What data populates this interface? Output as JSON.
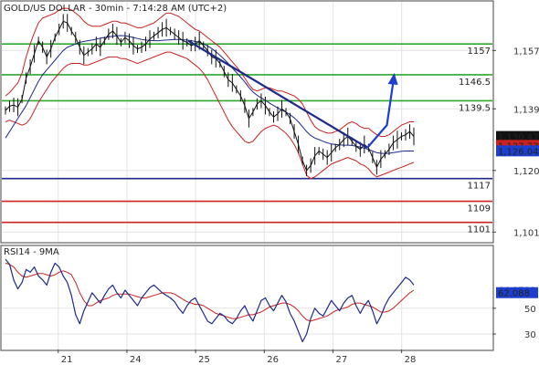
{
  "chart_data": [
    {
      "type": "line",
      "title": "GOLD/US DOLLAR - 30min - 7:14:28 AM (UTC+2)",
      "x_ticks": [
        "21",
        "24",
        "25",
        "26",
        "27",
        "28"
      ],
      "ylim": [
        1098,
        1172
      ],
      "y_ticks": [
        1101,
        1120,
        1139,
        1157
      ],
      "grid": true,
      "price_series": {
        "name": "",
        "values": [
          1138.5,
          1139.8,
          1140.2,
          1139.5,
          1142.0,
          1148.5,
          1152.0,
          1156.0,
          1160.0,
          1158.0,
          1155.0,
          1157.5,
          1161.0,
          1163.5,
          1166.0,
          1165.5,
          1163.0,
          1161.0,
          1158.0,
          1155.5,
          1156.5,
          1157.5,
          1159.0,
          1158.0,
          1160.0,
          1162.0,
          1163.0,
          1161.5,
          1159.5,
          1161.0,
          1160.0,
          1158.5,
          1157.5,
          1158.0,
          1159.0,
          1160.5,
          1161.5,
          1162.5,
          1163.5,
          1164.0,
          1163.0,
          1162.0,
          1161.0,
          1160.0,
          1159.5,
          1158.5,
          1159.0,
          1160.0,
          1158.5,
          1157.0,
          1155.0,
          1154.5,
          1153.0,
          1150.5,
          1148.0,
          1147.0,
          1145.0,
          1143.0,
          1140.0,
          1136.0,
          1138.0,
          1140.5,
          1141.5,
          1140.0,
          1138.0,
          1136.5,
          1137.5,
          1139.0,
          1138.0,
          1136.0,
          1132.0,
          1128.0,
          1123.0,
          1120.0,
          1121.5,
          1124.5,
          1126.0,
          1125.0,
          1124.0,
          1125.5,
          1127.0,
          1128.0,
          1129.5,
          1130.5,
          1129.0,
          1127.5,
          1126.5,
          1128.0,
          1127.0,
          1124.0,
          1121.0,
          1123.5,
          1125.0,
          1126.5,
          1128.5,
          1129.5,
          1130.5,
          1131.0,
          1132.0,
          1130.5
        ]
      },
      "ma_series": {
        "name": "",
        "values": [
          1130.0,
          1132.0,
          1134.0,
          1136.0,
          1138.0,
          1140.0,
          1142.5,
          1145.0,
          1147.5,
          1149.5,
          1151.0,
          1152.5,
          1154.0,
          1155.5,
          1157.0,
          1158.0,
          1158.5,
          1159.0,
          1159.5,
          1159.8,
          1160.0,
          1160.2,
          1160.5,
          1160.8,
          1161.0,
          1161.2,
          1161.4,
          1161.5,
          1161.6,
          1161.5,
          1161.3,
          1161.0,
          1160.7,
          1160.4,
          1160.2,
          1160.1,
          1160.0,
          1160.0,
          1160.1,
          1160.2,
          1160.3,
          1160.4,
          1160.4,
          1160.3,
          1160.2,
          1160.0,
          1159.8,
          1159.5,
          1159.0,
          1158.4,
          1157.6,
          1156.6,
          1155.5,
          1154.3,
          1153.0,
          1151.6,
          1150.2,
          1148.8,
          1147.3,
          1145.6,
          1144.2,
          1143.2,
          1142.4,
          1141.6,
          1140.8,
          1140.0,
          1139.3,
          1138.6,
          1138.0,
          1137.2,
          1136.2,
          1135.0,
          1133.5,
          1132.0,
          1130.8,
          1130.0,
          1129.5,
          1129.0,
          1128.5,
          1128.2,
          1128.0,
          1127.9,
          1127.8,
          1127.8,
          1127.7,
          1127.5,
          1127.2,
          1126.9,
          1126.5,
          1126.0,
          1125.5,
          1125.3,
          1125.2,
          1125.3,
          1125.5,
          1125.7,
          1125.9,
          1126.0,
          1126.0,
          1126.0
        ]
      },
      "bb_upper": [
        1143.0,
        1144.0,
        1145.5,
        1147.0,
        1150.0,
        1155.0,
        1159.0,
        1162.5,
        1165.5,
        1167.0,
        1167.5,
        1168.0,
        1168.5,
        1169.5,
        1170.0,
        1170.0,
        1169.5,
        1168.5,
        1167.5,
        1166.0,
        1165.0,
        1164.5,
        1164.5,
        1164.5,
        1165.0,
        1165.5,
        1166.0,
        1166.0,
        1165.5,
        1165.5,
        1165.0,
        1164.5,
        1164.0,
        1164.0,
        1164.5,
        1165.0,
        1165.5,
        1166.5,
        1167.5,
        1168.5,
        1168.5,
        1168.0,
        1167.5,
        1166.5,
        1165.5,
        1164.5,
        1163.5,
        1163.0,
        1162.0,
        1161.0,
        1160.0,
        1159.0,
        1158.0,
        1156.5,
        1155.0,
        1153.5,
        1152.0,
        1150.5,
        1148.5,
        1146.5,
        1145.0,
        1144.5,
        1145.0,
        1145.5,
        1145.5,
        1145.0,
        1144.5,
        1144.5,
        1144.0,
        1143.5,
        1143.0,
        1142.0,
        1140.5,
        1138.0,
        1135.5,
        1133.5,
        1132.5,
        1132.0,
        1131.5,
        1131.5,
        1132.0,
        1132.5,
        1133.5,
        1134.5,
        1135.0,
        1134.5,
        1133.5,
        1133.0,
        1133.0,
        1132.0,
        1131.0,
        1130.5,
        1130.5,
        1131.0,
        1132.0,
        1133.0,
        1134.0,
        1134.5,
        1135.0,
        1135.0
      ],
      "bb_lower": [
        1135.0,
        1135.5,
        1135.0,
        1134.5,
        1134.0,
        1134.5,
        1136.0,
        1138.5,
        1141.0,
        1143.0,
        1145.0,
        1147.0,
        1148.5,
        1150.0,
        1151.5,
        1152.5,
        1153.0,
        1153.0,
        1153.0,
        1152.5,
        1152.5,
        1153.0,
        1153.5,
        1154.0,
        1154.5,
        1155.0,
        1155.0,
        1155.0,
        1154.5,
        1154.5,
        1154.0,
        1153.5,
        1153.0,
        1153.5,
        1154.0,
        1154.5,
        1155.0,
        1155.5,
        1156.0,
        1156.5,
        1156.5,
        1156.0,
        1155.5,
        1155.0,
        1154.5,
        1153.5,
        1152.5,
        1151.5,
        1150.0,
        1148.0,
        1145.5,
        1143.0,
        1140.5,
        1138.0,
        1135.5,
        1133.5,
        1132.0,
        1130.5,
        1129.0,
        1128.5,
        1129.0,
        1130.5,
        1132.0,
        1133.0,
        1133.5,
        1134.0,
        1133.5,
        1132.5,
        1131.5,
        1130.0,
        1128.0,
        1125.5,
        1122.0,
        1118.5,
        1117.5,
        1118.0,
        1119.0,
        1120.0,
        1121.0,
        1122.0,
        1122.5,
        1123.0,
        1123.5,
        1124.0,
        1123.5,
        1123.0,
        1122.0,
        1121.5,
        1120.5,
        1119.0,
        1118.0,
        1118.5,
        1119.0,
        1119.5,
        1120.0,
        1120.5,
        1121.0,
        1121.5,
        1122.0,
        1122.5
      ],
      "levels": [
        {
          "label": "1157",
          "value": 1159.0,
          "color": "#2ea82e"
        },
        {
          "label": "1146.5",
          "value": 1149.5,
          "color": "#2ea82e"
        },
        {
          "label": "1139.5",
          "value": 1141.5,
          "color": "#2ea82e"
        },
        {
          "label": "1117",
          "value": 1117.5,
          "color": "#1c2a8c"
        },
        {
          "label": "1109",
          "value": 1110.5,
          "color": "#cc2222"
        },
        {
          "label": "1101",
          "value": 1104.0,
          "color": "#cc2222"
        }
      ],
      "trendline": {
        "from": [
          0.38,
          1160.0
        ],
        "to": [
          0.745,
          1127.0
        ],
        "color": "#1c2a8c"
      },
      "projection_arrow": {
        "points": [
          [
            0.745,
            1127.0
          ],
          [
            0.785,
            1134.0
          ],
          [
            0.8,
            1149.5
          ]
        ],
        "color": "#1c3fd0"
      },
      "price_badges": [
        {
          "label": "1,130.47",
          "value": 1130.47,
          "bg": "#111111",
          "fg": "#ffffff"
        },
        {
          "label": "1,127.73",
          "value": 1127.73,
          "bg": "#cc2222",
          "fg": "#ffffff"
        },
        {
          "label": "1,126.04",
          "value": 1126.04,
          "bg": "#1c3fd0",
          "fg": "#ffffff"
        }
      ],
      "colors": {
        "price": "#111111",
        "ma": "#1c2a8c",
        "bands": "#cc2222"
      }
    },
    {
      "type": "line",
      "title": "RSI14 - 9MA",
      "ylim": [
        18,
        98
      ],
      "y_ticks": [
        30,
        50
      ],
      "grid": true,
      "rsi": {
        "name": "",
        "values": [
          88,
          84,
          72,
          65,
          70,
          80,
          78,
          82,
          75,
          72,
          68,
          78,
          85,
          82,
          75,
          70,
          60,
          45,
          38,
          48,
          55,
          62,
          58,
          54,
          60,
          65,
          68,
          62,
          58,
          64,
          60,
          56,
          52,
          58,
          62,
          66,
          68,
          65,
          62,
          60,
          58,
          55,
          50,
          46,
          52,
          56,
          58,
          52,
          46,
          40,
          38,
          42,
          46,
          44,
          40,
          38,
          42,
          48,
          52,
          45,
          40,
          48,
          56,
          58,
          52,
          48,
          54,
          60,
          55,
          46,
          40,
          32,
          24,
          30,
          42,
          50,
          46,
          44,
          50,
          56,
          52,
          48,
          54,
          58,
          60,
          52,
          46,
          52,
          56,
          48,
          38,
          44,
          52,
          58,
          62,
          66,
          70,
          74,
          72,
          68
        ]
      },
      "ma": {
        "name": "",
        "values": [
          85,
          84,
          82,
          78,
          75,
          74,
          75,
          76,
          77,
          77,
          76,
          75,
          76,
          78,
          79,
          78,
          76,
          70,
          62,
          56,
          52,
          52,
          54,
          56,
          57,
          58,
          60,
          61,
          61,
          61,
          61,
          60,
          59,
          58,
          58,
          59,
          60,
          61,
          62,
          62,
          62,
          61,
          59,
          57,
          55,
          54,
          53,
          53,
          52,
          50,
          48,
          46,
          45,
          44,
          43,
          42,
          42,
          43,
          44,
          45,
          45,
          46,
          47,
          49,
          51,
          52,
          53,
          54,
          54,
          53,
          51,
          48,
          44,
          41,
          40,
          41,
          42,
          43,
          44,
          46,
          48,
          49,
          50,
          51,
          53,
          54,
          54,
          53,
          52,
          51,
          49,
          47,
          47,
          48,
          50,
          53,
          56,
          59,
          62,
          64
        ]
      },
      "badges": [
        {
          "label": "64.3788",
          "value": 64.3788,
          "bg": "#ffffff",
          "fg": "#cc2222"
        },
        {
          "label": "62.088",
          "value": 62.088,
          "bg": "#1c3fd0",
          "fg": "#ffffff"
        }
      ],
      "colors": {
        "rsi": "#1c2a8c",
        "ma": "#cc2222"
      }
    }
  ]
}
